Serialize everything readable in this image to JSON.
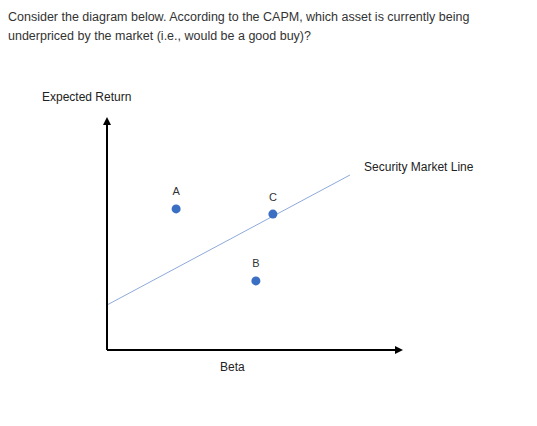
{
  "question": "Consider the diagram below.  According to the CAPM, which asset is currently being underpriced by the market (i.e., would be a good buy)?",
  "chart_data": {
    "type": "scatter",
    "x_label": "Beta",
    "y_label": "Expected Return",
    "xlim": [
      0,
      10
    ],
    "ylim": [
      0,
      10
    ],
    "xticks": [],
    "yticks": [],
    "tick_labels": false,
    "series": [
      {
        "name": "Security Market Line",
        "type": "line",
        "color": "#8eaadb",
        "x": [
          0,
          8.44
        ],
        "values": [
          2.0,
          7.78
        ]
      },
      {
        "type": "scatter",
        "color": "#3a6fc4",
        "marker": "circle",
        "labels": [
          "A",
          "B",
          "C"
        ],
        "x": [
          2.4,
          5.17,
          5.76
        ],
        "values": [
          6.27,
          3.07,
          6.04
        ]
      }
    ]
  }
}
